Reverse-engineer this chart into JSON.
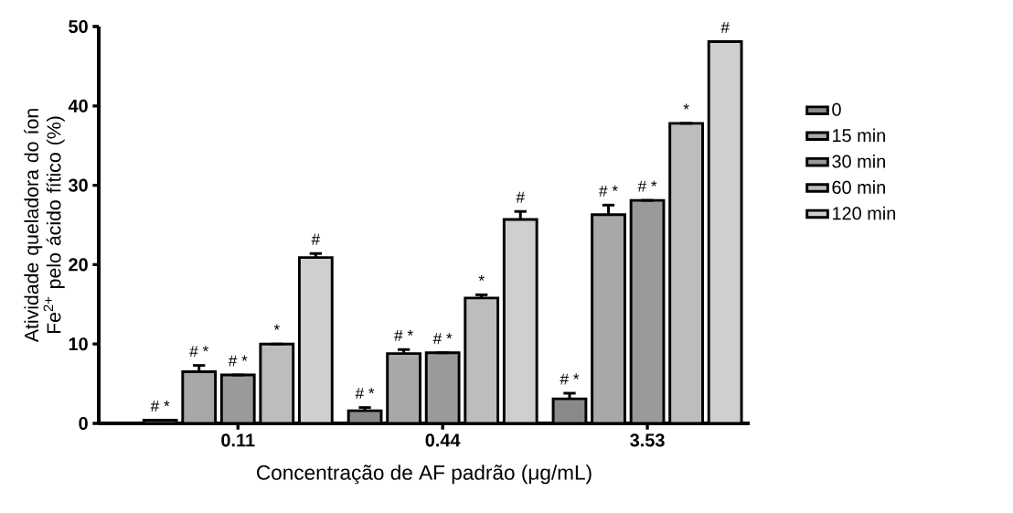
{
  "chart_data": {
    "type": "bar",
    "xlabel": "Concentração de AF padrão (μg/mL)",
    "ylabel": "Atividade queladora do íon Fe$^{2+}$ pelo ácido fítico (%)",
    "categories": [
      "0.11",
      "0.44",
      "3.53"
    ],
    "series": [
      {
        "name": "0",
        "color": "#8a8a8a",
        "values": [
          0.4,
          1.6,
          3.1
        ],
        "errors": [
          null,
          0.4,
          0.7
        ]
      },
      {
        "name": "15 min",
        "color": "#a8a8a8",
        "values": [
          6.5,
          8.8,
          26.3
        ],
        "errors": [
          0.8,
          0.5,
          1.2
        ]
      },
      {
        "name": "30 min",
        "color": "#9a9a9a",
        "values": [
          6.1,
          8.9,
          28.1
        ],
        "errors": [
          null,
          null,
          null
        ]
      },
      {
        "name": "60 min",
        "color": "#bdbdbd",
        "values": [
          10.0,
          15.8,
          37.8
        ],
        "errors": [
          null,
          0.4,
          null
        ]
      },
      {
        "name": "120 min",
        "color": "#cfcfcf",
        "values": [
          20.9,
          25.7,
          48.1
        ],
        "errors": [
          0.5,
          1.0,
          null
        ]
      }
    ],
    "ylim": [
      0,
      50
    ],
    "yticks": [
      0,
      10,
      20,
      30,
      40,
      50
    ],
    "grid": false,
    "legend": "right",
    "annotations": [
      "# *",
      "# *",
      "# *",
      "*",
      "#",
      "# *",
      "# *",
      "# *",
      "*",
      "#",
      "# *",
      "# *",
      "# *",
      "*",
      "#"
    ]
  }
}
